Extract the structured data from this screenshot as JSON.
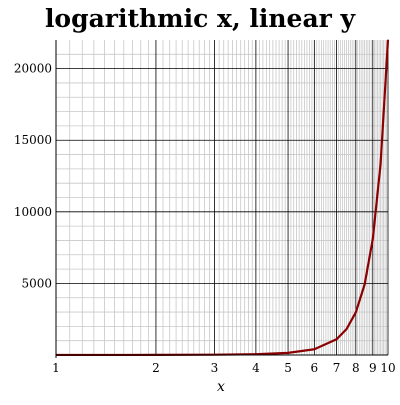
{
  "chart_data": {
    "type": "line",
    "title": "logarithmic x, linear y",
    "xlabel": "x",
    "ylabel": "",
    "x_scale": "log",
    "y_scale": "linear",
    "xlim": [
      1,
      10
    ],
    "ylim": [
      0,
      22000
    ],
    "x_ticks": [
      1,
      2,
      3,
      4,
      5,
      6,
      7,
      8,
      9,
      10
    ],
    "x_tick_labels": [
      "1",
      "2",
      "3",
      "4",
      "5",
      "6",
      "7",
      "8",
      "9",
      "10"
    ],
    "y_ticks": [
      5000,
      10000,
      15000,
      20000
    ],
    "y_tick_labels": [
      "5000",
      "10000",
      "15000",
      "20000"
    ],
    "grid": true,
    "legend": "none",
    "series": [
      {
        "color": "#8b0000",
        "x": [
          1,
          2,
          3,
          4,
          5,
          6,
          7,
          7.5,
          8,
          8.5,
          9,
          9.5,
          10
        ],
        "y": [
          3,
          7,
          20,
          55,
          148,
          403,
          1097,
          1808,
          2981,
          4915,
          8103,
          13360,
          22026
        ]
      }
    ]
  },
  "colors": {
    "background": "#ffffff",
    "major_grid": "#000000",
    "minor_grid": "#c8c8c8",
    "curve": "#8b0000"
  }
}
